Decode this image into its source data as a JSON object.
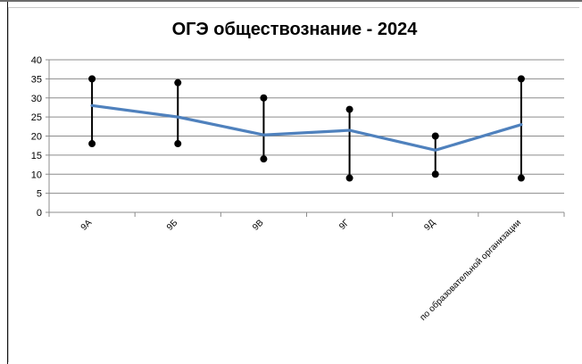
{
  "chart_data": {
    "type": "line",
    "title": "ОГЭ обществознание - 2024",
    "xlabel": "",
    "ylabel": "",
    "categories": [
      "9А",
      "9Б",
      "9В",
      "9Г",
      "9Д",
      "по образовательной организации"
    ],
    "ylim": [
      0,
      40
    ],
    "yticks": [
      0,
      5,
      10,
      15,
      20,
      25,
      30,
      35,
      40
    ],
    "grid": true,
    "legend": "none",
    "series": [
      {
        "values": [
          28,
          25,
          20.3,
          21.5,
          16.3,
          23
        ],
        "color": "#4f81bd"
      }
    ],
    "error_ranges": {
      "min": [
        18,
        18,
        14,
        9,
        10,
        9
      ],
      "max": [
        35,
        34,
        30,
        27,
        20,
        35
      ],
      "color": "#000000"
    }
  }
}
